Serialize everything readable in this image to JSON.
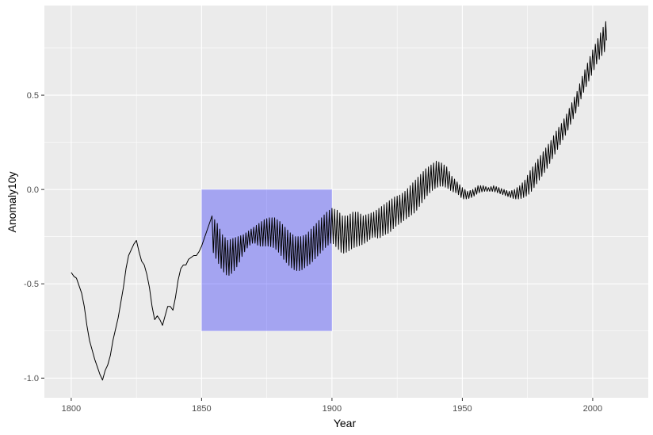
{
  "chart_data": {
    "type": "line",
    "title": "",
    "xlabel": "Year",
    "ylabel": "Anomaly10y",
    "xlim": [
      1789.7,
      2021.3
    ],
    "ylim": [
      -1.104,
      0.975
    ],
    "x_ticks": [
      {
        "value": 1800,
        "label": "1800"
      },
      {
        "value": 1850,
        "label": "1850"
      },
      {
        "value": 1900,
        "label": "1900"
      },
      {
        "value": 1950,
        "label": "1950"
      },
      {
        "value": 2000,
        "label": "2000"
      }
    ],
    "y_ticks": [
      {
        "value": -1.0,
        "label": "-1.0"
      },
      {
        "value": -0.5,
        "label": "-0.5"
      },
      {
        "value": 0.0,
        "label": "0.0"
      },
      {
        "value": 0.5,
        "label": "0.5"
      }
    ],
    "grid": true,
    "highlight_rect": {
      "xmin": 1850,
      "xmax": 1900,
      "ymin": -0.75,
      "ymax": 0.0,
      "fill": "#0000ff",
      "opacity": 0.3
    },
    "line_color": "#000000",
    "panel_background": "#ebebeb",
    "grid_color": "#ffffff",
    "series": [
      {
        "smooth": [
          [
            1800,
            -0.44
          ],
          [
            1801,
            -0.46
          ],
          [
            1802,
            -0.47
          ],
          [
            1803,
            -0.51
          ],
          [
            1804,
            -0.55
          ],
          [
            1805,
            -0.62
          ],
          [
            1806,
            -0.72
          ],
          [
            1807,
            -0.8
          ],
          [
            1808,
            -0.85
          ],
          [
            1809,
            -0.9
          ],
          [
            1810,
            -0.94
          ],
          [
            1811,
            -0.98
          ],
          [
            1812,
            -1.01
          ],
          [
            1813,
            -0.96
          ],
          [
            1814,
            -0.93
          ],
          [
            1815,
            -0.88
          ],
          [
            1816,
            -0.8
          ],
          [
            1817,
            -0.74
          ],
          [
            1818,
            -0.68
          ],
          [
            1819,
            -0.6
          ],
          [
            1820,
            -0.52
          ],
          [
            1821,
            -0.42
          ],
          [
            1822,
            -0.35
          ],
          [
            1823,
            -0.32
          ],
          [
            1824,
            -0.29
          ],
          [
            1825,
            -0.27
          ],
          [
            1826,
            -0.33
          ],
          [
            1827,
            -0.38
          ],
          [
            1828,
            -0.4
          ],
          [
            1829,
            -0.45
          ],
          [
            1830,
            -0.52
          ],
          [
            1831,
            -0.62
          ],
          [
            1832,
            -0.69
          ],
          [
            1833,
            -0.67
          ],
          [
            1834,
            -0.69
          ],
          [
            1835,
            -0.72
          ],
          [
            1836,
            -0.67
          ],
          [
            1837,
            -0.62
          ],
          [
            1838,
            -0.62
          ],
          [
            1839,
            -0.64
          ],
          [
            1840,
            -0.57
          ],
          [
            1841,
            -0.48
          ],
          [
            1842,
            -0.42
          ],
          [
            1843,
            -0.4
          ],
          [
            1844,
            -0.4
          ],
          [
            1845,
            -0.37
          ],
          [
            1846,
            -0.36
          ],
          [
            1847,
            -0.35
          ],
          [
            1848,
            -0.35
          ],
          [
            1849,
            -0.33
          ],
          [
            1850,
            -0.3
          ]
        ],
        "oscillating": [
          [
            1854,
            -0.14,
            -0.32
          ],
          [
            1856,
            -0.18,
            -0.38
          ],
          [
            1858,
            -0.24,
            -0.43
          ],
          [
            1860,
            -0.27,
            -0.46
          ],
          [
            1862,
            -0.26,
            -0.44
          ],
          [
            1864,
            -0.25,
            -0.4
          ],
          [
            1866,
            -0.24,
            -0.34
          ],
          [
            1868,
            -0.22,
            -0.3
          ],
          [
            1870,
            -0.2,
            -0.28
          ],
          [
            1872,
            -0.18,
            -0.3
          ],
          [
            1874,
            -0.16,
            -0.3
          ],
          [
            1876,
            -0.15,
            -0.3
          ],
          [
            1878,
            -0.15,
            -0.31
          ],
          [
            1880,
            -0.17,
            -0.34
          ],
          [
            1882,
            -0.2,
            -0.38
          ],
          [
            1884,
            -0.23,
            -0.41
          ],
          [
            1886,
            -0.25,
            -0.43
          ],
          [
            1888,
            -0.25,
            -0.43
          ],
          [
            1890,
            -0.24,
            -0.41
          ],
          [
            1892,
            -0.21,
            -0.39
          ],
          [
            1894,
            -0.18,
            -0.36
          ],
          [
            1896,
            -0.15,
            -0.33
          ],
          [
            1898,
            -0.12,
            -0.3
          ],
          [
            1900,
            -0.1,
            -0.28
          ],
          [
            1902,
            -0.11,
            -0.31
          ],
          [
            1904,
            -0.14,
            -0.34
          ],
          [
            1906,
            -0.14,
            -0.33
          ],
          [
            1908,
            -0.12,
            -0.31
          ],
          [
            1910,
            -0.12,
            -0.3
          ],
          [
            1912,
            -0.14,
            -0.29
          ],
          [
            1914,
            -0.13,
            -0.27
          ],
          [
            1916,
            -0.12,
            -0.25
          ],
          [
            1918,
            -0.1,
            -0.26
          ],
          [
            1920,
            -0.08,
            -0.24
          ],
          [
            1922,
            -0.06,
            -0.23
          ],
          [
            1924,
            -0.04,
            -0.2
          ],
          [
            1926,
            -0.03,
            -0.18
          ],
          [
            1928,
            -0.01,
            -0.16
          ],
          [
            1930,
            0.02,
            -0.14
          ],
          [
            1932,
            0.05,
            -0.12
          ],
          [
            1934,
            0.08,
            -0.08
          ],
          [
            1936,
            0.11,
            -0.04
          ],
          [
            1938,
            0.13,
            -0.01
          ],
          [
            1940,
            0.15,
            0.01
          ],
          [
            1942,
            0.14,
            0.02
          ],
          [
            1944,
            0.12,
            0.01
          ],
          [
            1946,
            0.07,
            -0.01
          ],
          [
            1948,
            0.04,
            -0.02
          ],
          [
            1950,
            0.01,
            -0.05
          ],
          [
            1952,
            -0.01,
            -0.05
          ],
          [
            1954,
            0.0,
            -0.04
          ],
          [
            1956,
            0.02,
            -0.02
          ],
          [
            1958,
            0.02,
            -0.01
          ],
          [
            1960,
            0.01,
            -0.01
          ],
          [
            1962,
            0.02,
            -0.01
          ],
          [
            1964,
            0.01,
            -0.02
          ],
          [
            1966,
            0.0,
            -0.03
          ],
          [
            1968,
            -0.01,
            -0.04
          ],
          [
            1970,
            0.0,
            -0.05
          ],
          [
            1972,
            0.02,
            -0.05
          ],
          [
            1974,
            0.05,
            -0.04
          ],
          [
            1976,
            0.1,
            -0.02
          ],
          [
            1978,
            0.14,
            0.02
          ],
          [
            1980,
            0.18,
            0.06
          ],
          [
            1982,
            0.22,
            0.1
          ],
          [
            1984,
            0.26,
            0.15
          ],
          [
            1986,
            0.31,
            0.2
          ],
          [
            1988,
            0.35,
            0.25
          ],
          [
            1990,
            0.4,
            0.3
          ],
          [
            1992,
            0.46,
            0.36
          ],
          [
            1994,
            0.52,
            0.42
          ],
          [
            1996,
            0.6,
            0.5
          ],
          [
            1998,
            0.67,
            0.56
          ],
          [
            2000,
            0.74,
            0.62
          ],
          [
            2002,
            0.8,
            0.68
          ],
          [
            2004,
            0.86,
            0.72
          ],
          [
            2005,
            0.89,
            0.74
          ]
        ]
      }
    ]
  }
}
